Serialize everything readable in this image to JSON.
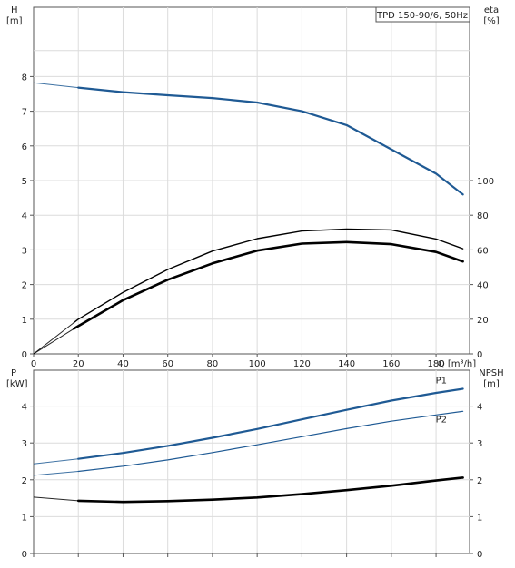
{
  "chart_data": [
    {
      "type": "line",
      "title": "TPD 150-90/6, 50Hz",
      "xlabel": "Q [m³/h]",
      "xlim": [
        0,
        195
      ],
      "x_ticks": [
        0,
        20,
        40,
        60,
        80,
        100,
        120,
        140,
        160,
        180
      ],
      "y_left": {
        "label_top": "H",
        "label_unit": "[m]",
        "ylim": [
          0,
          9
        ],
        "ticks": [
          0,
          1,
          2,
          3,
          4,
          5,
          6,
          7,
          8
        ]
      },
      "y_right": {
        "label_top": "eta",
        "label_unit": "[%]",
        "ylim": [
          0,
          100
        ],
        "ticks": [
          0,
          20,
          40,
          60,
          80,
          100
        ]
      },
      "grid": true,
      "series": [
        {
          "axis": "left",
          "color": "#1f5a94",
          "x": [
            0,
            20,
            40,
            60,
            80,
            100,
            120,
            140,
            160,
            180,
            192
          ],
          "values": [
            7.82,
            7.68,
            7.55,
            7.46,
            7.38,
            7.25,
            7.0,
            6.6,
            5.9,
            5.2,
            4.6
          ]
        },
        {
          "axis": "right",
          "color": "#000000",
          "x": [
            0,
            18,
            20,
            40,
            60,
            80,
            100,
            120,
            140,
            160,
            180,
            192
          ],
          "values": [
            0,
            18,
            20,
            35.5,
            48.7,
            59.3,
            66.5,
            70.9,
            72.0,
            71.5,
            66.3,
            60.7
          ]
        },
        {
          "axis": "right",
          "color": "#000000",
          "x": [
            0,
            18,
            20,
            40,
            60,
            80,
            100,
            120,
            140,
            160,
            180,
            192
          ],
          "values": [
            0,
            14.5,
            16,
            31,
            42.8,
            52.2,
            59.6,
            63.6,
            64.5,
            63.3,
            58.8,
            53.3
          ]
        }
      ]
    },
    {
      "type": "line",
      "xlabel": "",
      "xlim": [
        0,
        195
      ],
      "x_ticks": [
        0,
        20,
        40,
        60,
        80,
        100,
        120,
        140,
        160,
        180
      ],
      "y_left": {
        "label_top": "P",
        "label_unit": "[kW]",
        "ylim": [
          0,
          5
        ],
        "ticks": [
          0,
          1,
          2,
          3,
          4
        ]
      },
      "y_right": {
        "label_top": "NPSH",
        "label_unit": "[m]",
        "ylim": [
          0,
          5
        ],
        "ticks": [
          0,
          1,
          2,
          3,
          4
        ]
      },
      "grid": true,
      "series": [
        {
          "name": "P1",
          "axis": "left",
          "color": "#1f5a94",
          "x": [
            0,
            20,
            40,
            60,
            80,
            100,
            120,
            140,
            160,
            180,
            192
          ],
          "values": [
            2.43,
            2.57,
            2.73,
            2.92,
            3.14,
            3.38,
            3.64,
            3.9,
            4.15,
            4.36,
            4.47
          ]
        },
        {
          "name": "P2",
          "axis": "left",
          "color": "#1f5a94",
          "x": [
            0,
            20,
            40,
            60,
            80,
            100,
            120,
            140,
            160,
            180,
            192
          ],
          "values": [
            2.12,
            2.23,
            2.37,
            2.54,
            2.74,
            2.95,
            3.17,
            3.39,
            3.59,
            3.76,
            3.86
          ]
        },
        {
          "axis": "right",
          "color": "#000000",
          "x": [
            0,
            20,
            40,
            60,
            80,
            100,
            120,
            140,
            160,
            180,
            192
          ],
          "values": [
            1.53,
            1.43,
            1.4,
            1.42,
            1.46,
            1.52,
            1.61,
            1.72,
            1.84,
            1.98,
            2.06
          ]
        }
      ]
    }
  ]
}
